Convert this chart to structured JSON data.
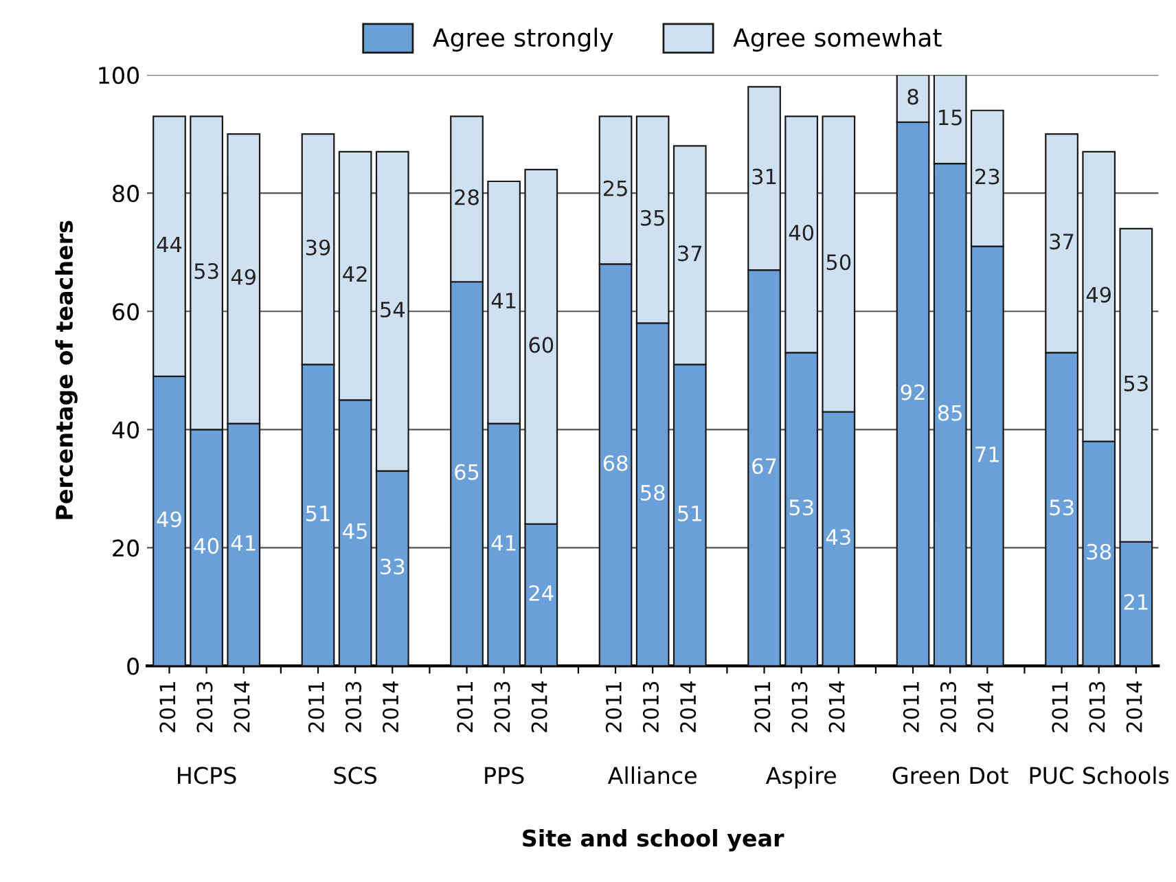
{
  "chart_data": {
    "type": "bar",
    "stacked": true,
    "xlabel": "Site and school year",
    "ylabel": "Percentage of teachers",
    "categories": [
      "2011",
      "2013",
      "2014",
      null,
      "2011",
      "2013",
      "2014",
      null,
      "2011",
      "2013",
      "2014",
      null,
      "2011",
      "2013",
      "2014",
      null,
      "2011",
      "2013",
      "2014",
      null,
      "2011",
      "2013",
      "2014",
      null,
      "2011",
      "2013",
      "2014"
    ],
    "series": [
      {
        "name": "Agree strongly",
        "color": "#6a9fd8",
        "values": [
          49,
          40,
          41,
          null,
          51,
          45,
          33,
          null,
          65,
          41,
          24,
          null,
          68,
          58,
          51,
          null,
          67,
          53,
          43,
          null,
          92,
          85,
          71,
          null,
          53,
          38,
          21
        ]
      },
      {
        "name": "Agree somewhat",
        "color": "#cfe0f1",
        "values": [
          44,
          53,
          49,
          null,
          39,
          42,
          54,
          null,
          28,
          41,
          60,
          null,
          25,
          35,
          37,
          null,
          31,
          40,
          50,
          null,
          8,
          15,
          23,
          null,
          37,
          49,
          53
        ]
      }
    ],
    "annotations": [
      "HCPS",
      "SCS",
      "PPS",
      "Alliance",
      "Aspire",
      "Green Dot",
      "PUC Schools"
    ],
    "ylim": [
      0,
      100
    ],
    "yticks": [
      0,
      20,
      40,
      60,
      80,
      100
    ],
    "grid": "y",
    "data_labels": true,
    "legend": "top"
  }
}
